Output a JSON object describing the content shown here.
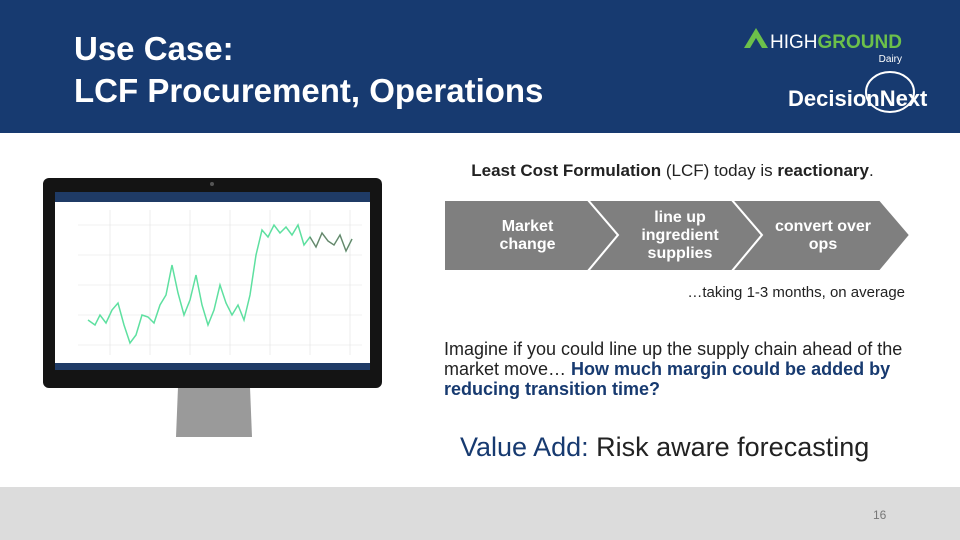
{
  "header": {
    "title_lines": [
      "Use Case:",
      "LCF Procurement, Operations"
    ],
    "logo_highground": {
      "high": "HIGH",
      "ground": "GROUND",
      "sub": "Dairy"
    },
    "logo_decisionnext": "DecisionNext"
  },
  "intro": {
    "term": "Least Cost Formulation",
    "middle": "(LCF) today is",
    "emphasis": "reactionary",
    "end": "."
  },
  "process": {
    "steps": [
      "Market change",
      "line up ingredient supplies",
      "convert over ops"
    ],
    "note": "…taking 1-3 months, on average"
  },
  "body": {
    "plain": "Imagine if you could line up the supply chain ahead of the market move…",
    "highlight": "How much margin could be added by reducing transition time?"
  },
  "value_add": {
    "label": "Value Add:",
    "text": "Risk aware forecasting"
  },
  "footer": {
    "page_number": "16"
  }
}
